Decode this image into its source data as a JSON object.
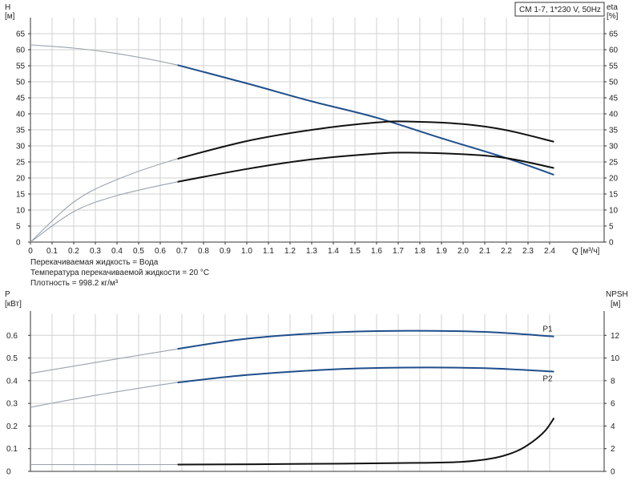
{
  "chart_data": [
    {
      "type": "line",
      "title": "CM 1-7, 1*230 V, 50Hz",
      "left_axis": {
        "name": "H",
        "unit": "[м]",
        "ylim": [
          0,
          65
        ],
        "ticks": [
          0,
          5,
          10,
          15,
          20,
          25,
          30,
          35,
          40,
          45,
          50,
          55,
          60,
          65
        ]
      },
      "right_axis": {
        "name": "eta",
        "unit": "[%]",
        "ylim": [
          0,
          65
        ],
        "ticks": [
          0,
          5,
          10,
          15,
          20,
          25,
          30,
          35,
          40,
          45,
          50,
          55,
          60,
          65
        ]
      },
      "x_axis": {
        "label": "Q [м³/ч]",
        "xlim": [
          0,
          2.65
        ],
        "ticks": [
          0,
          0.1,
          0.2,
          0.3,
          0.4,
          0.5,
          0.6,
          0.7,
          0.8,
          0.9,
          1.0,
          1.1,
          1.2,
          1.3,
          1.4,
          1.5,
          1.6,
          1.7,
          1.8,
          1.9,
          2.0,
          2.1,
          2.2,
          2.3,
          2.4
        ]
      },
      "grid": true,
      "series": [
        {
          "id": "H",
          "color": "#1f4e8c",
          "axis": "left",
          "x": [
            0,
            0.2,
            0.4,
            0.68,
            1.0,
            1.3,
            1.6,
            1.9,
            2.2,
            2.42
          ],
          "y": [
            61.5,
            60.5,
            58.8,
            55.2,
            49.5,
            43.9,
            38.8,
            32.4,
            26.2,
            21.0
          ]
        },
        {
          "id": "eta_upper",
          "color": "#111111",
          "axis": "right",
          "x": [
            0,
            0.2,
            0.4,
            0.68,
            1.0,
            1.3,
            1.6,
            1.75,
            2.0,
            2.2,
            2.42
          ],
          "y": [
            0,
            12.5,
            19.5,
            26.0,
            31.5,
            35.0,
            37.3,
            37.6,
            36.8,
            34.9,
            31.3
          ]
        },
        {
          "id": "eta_lower",
          "color": "#111111",
          "axis": "right",
          "x": [
            0,
            0.2,
            0.4,
            0.68,
            1.0,
            1.3,
            1.6,
            1.75,
            2.0,
            2.2,
            2.42
          ],
          "y": [
            0,
            9.5,
            14.5,
            18.8,
            22.8,
            25.8,
            27.6,
            27.9,
            27.4,
            26.2,
            23.1
          ]
        }
      ],
      "highlight_from_x": 0.68,
      "footnotes": [
        "Перекачиваемая жидкость = Вода",
        "Температура перекачиваемой жидкости = 20 °C",
        "Плотность = 998.2 кг/м³"
      ]
    },
    {
      "type": "line",
      "left_axis": {
        "name": "P",
        "unit": "[кВт]",
        "ylim": [
          0,
          0.7
        ],
        "ticks": [
          0,
          0.1,
          0.2,
          0.3,
          0.4,
          0.5,
          0.6
        ]
      },
      "right_axis": {
        "name": "NPSH",
        "unit": "[м]",
        "ylim": [
          0,
          14
        ],
        "ticks": [
          0,
          2,
          4,
          6,
          8,
          10,
          12
        ]
      },
      "x_axis": {
        "xlim": [
          0,
          2.65
        ]
      },
      "grid": true,
      "series": [
        {
          "id": "P1",
          "name": "P1",
          "color": "#1f4e8c",
          "axis": "left",
          "x": [
            0,
            0.3,
            0.68,
            1.0,
            1.4,
            1.75,
            2.1,
            2.42
          ],
          "y": [
            0.432,
            0.48,
            0.54,
            0.585,
            0.613,
            0.62,
            0.615,
            0.595
          ]
        },
        {
          "id": "P2",
          "name": "P2",
          "color": "#1f4e8c",
          "axis": "left",
          "x": [
            0,
            0.3,
            0.68,
            1.0,
            1.4,
            1.75,
            2.1,
            2.42
          ],
          "y": [
            0.283,
            0.335,
            0.392,
            0.425,
            0.45,
            0.458,
            0.455,
            0.44
          ]
        },
        {
          "id": "NPSH",
          "color": "#111111",
          "axis": "right",
          "x": [
            0,
            0.68,
            1.2,
            1.8,
            2.0,
            2.15,
            2.25,
            2.32,
            2.38,
            2.42
          ],
          "y": [
            0.6,
            0.6,
            0.65,
            0.75,
            0.85,
            1.2,
            1.8,
            2.6,
            3.6,
            4.7
          ]
        }
      ],
      "highlight_from_x": 0.68
    }
  ]
}
